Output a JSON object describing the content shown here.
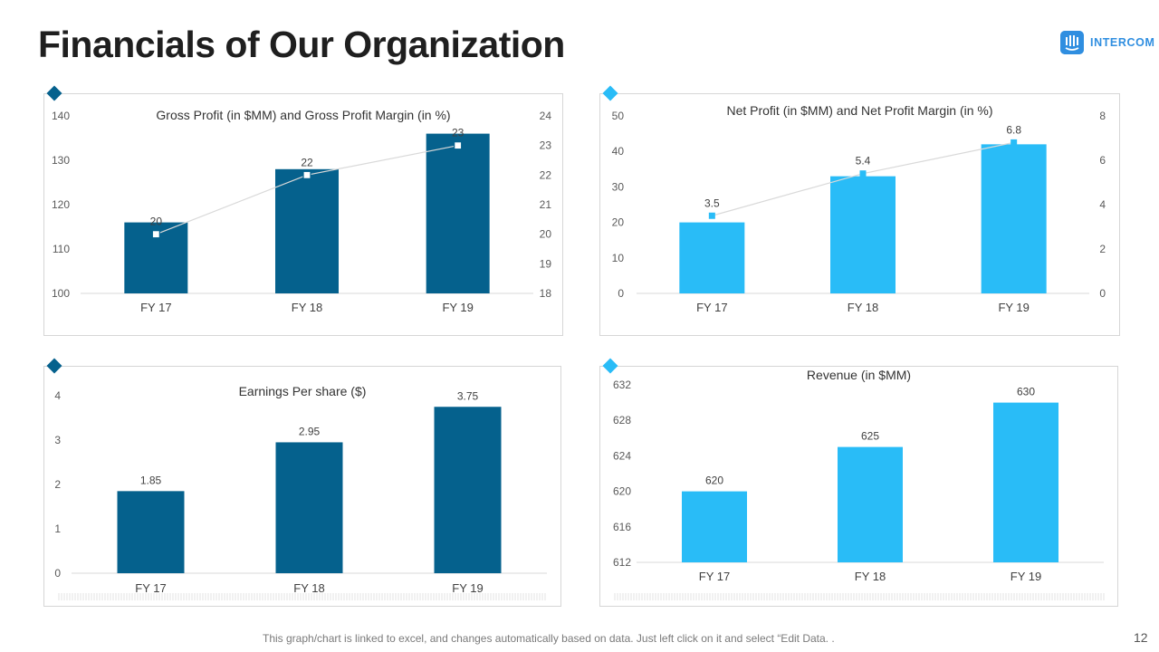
{
  "page": {
    "title": "Financials of Our Organization",
    "page_number": "12"
  },
  "logo": {
    "text": "INTERCOM",
    "color": "#2f8ee0"
  },
  "footnote": "This graph/chart is linked to excel, and changes automatically based on data. Just left click on it and select “Edit Data. .",
  "colors": {
    "dark_blue": "#05618d",
    "light_blue": "#29bcf7",
    "diamond_dark": "#05618d",
    "diamond_light": "#29bcf7",
    "line": "#d9d9d9",
    "axis": "#d9d9d9"
  },
  "chart_data": [
    {
      "id": "gross",
      "type": "bar",
      "title": "Gross Profit (in $MM)  and Gross Profit Margin  (in %)",
      "categories": [
        "FY 17",
        "FY 18",
        "FY 19"
      ],
      "series": [
        {
          "name": "Gross Profit (in $MM)",
          "values": [
            116,
            128,
            136
          ],
          "kind": "bar"
        },
        {
          "name": "Gross Profit Margin (in %)",
          "values": [
            20,
            22,
            23
          ],
          "kind": "line",
          "axis": "right",
          "labels": [
            "20",
            "22",
            "23"
          ]
        }
      ],
      "ylim": [
        100,
        140
      ],
      "yticks": [
        "100",
        "110",
        "120",
        "130",
        "140"
      ],
      "y2lim": [
        18,
        24
      ],
      "y2ticks": [
        "18",
        "19",
        "20",
        "21",
        "22",
        "23",
        "24"
      ]
    },
    {
      "id": "net",
      "type": "bar",
      "title": "Net Profit (in $MM)  and Net Profit Margin  (in %)",
      "categories": [
        "FY 17",
        "FY 18",
        "FY 19"
      ],
      "series": [
        {
          "name": "Net Profit (in $MM)",
          "values": [
            20,
            33,
            42
          ],
          "kind": "bar"
        },
        {
          "name": "Net Profit Margin (in %)",
          "values": [
            3.5,
            5.4,
            6.8
          ],
          "kind": "line",
          "axis": "right",
          "labels": [
            "3.5",
            "5.4",
            "6.8"
          ]
        }
      ],
      "ylim": [
        0,
        50
      ],
      "yticks": [
        "0",
        "10",
        "20",
        "30",
        "40",
        "50"
      ],
      "y2lim": [
        0,
        8
      ],
      "y2ticks": [
        "0",
        "2",
        "4",
        "6",
        "8"
      ]
    },
    {
      "id": "eps",
      "type": "bar",
      "title": "Earnings Per share ($)",
      "categories": [
        "FY 17",
        "FY 18",
        "FY 19"
      ],
      "series": [
        {
          "name": "Earnings Per share ($)",
          "values": [
            1.85,
            2.95,
            3.75
          ],
          "kind": "bar",
          "labels": [
            "1.85",
            "2.95",
            "3.75"
          ]
        }
      ],
      "ylim": [
        0,
        4
      ],
      "yticks": [
        "0",
        "1",
        "2",
        "3",
        "4"
      ]
    },
    {
      "id": "revenue",
      "type": "bar",
      "title": "Revenue (in $MM)",
      "categories": [
        "FY 17",
        "FY 18",
        "FY 19"
      ],
      "series": [
        {
          "name": "Revenue (in $MM)",
          "values": [
            620,
            625,
            630
          ],
          "kind": "bar",
          "labels": [
            "620",
            "625",
            "630"
          ]
        }
      ],
      "ylim": [
        612,
        632
      ],
      "yticks": [
        "612",
        "616",
        "620",
        "624",
        "628",
        "632"
      ]
    }
  ]
}
